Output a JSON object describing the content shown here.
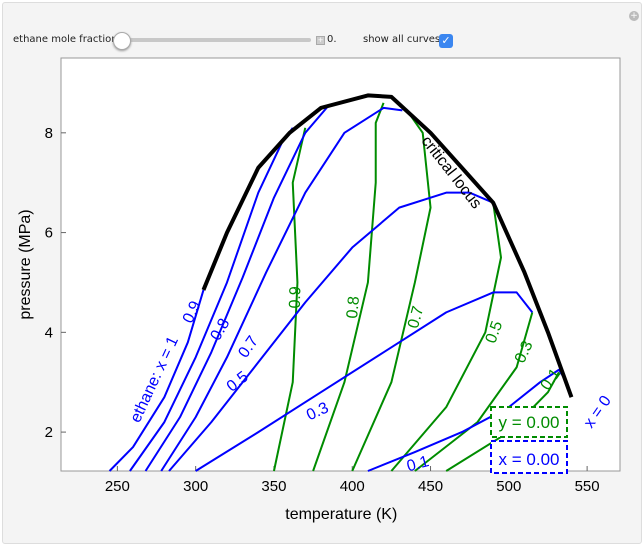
{
  "controls": {
    "slider_label": "ethane mole fraction",
    "slider_value": "0.",
    "slider_fraction": 0,
    "checkbox_label": "show all curves",
    "checkbox_checked": true
  },
  "chart_data": {
    "type": "line",
    "xlabel": "temperature (K)",
    "ylabel": "pressure (MPa)",
    "xlim": [
      214,
      571
    ],
    "ylim": [
      1.22,
      9.5
    ],
    "xticks": [
      250,
      300,
      350,
      400,
      450,
      500,
      550
    ],
    "yticks": [
      2,
      4,
      6,
      8
    ],
    "colors": {
      "critical": "#000000",
      "bubble": "#0000ff",
      "dew": "#008c00"
    },
    "critical_locus": {
      "label": "critical locus",
      "points": [
        [
          305,
          4.85
        ],
        [
          320,
          6.0
        ],
        [
          340,
          7.3
        ],
        [
          360,
          8.0
        ],
        [
          380,
          8.5
        ],
        [
          410,
          8.75
        ],
        [
          425,
          8.72
        ],
        [
          450,
          8.0
        ],
        [
          470,
          7.3
        ],
        [
          490,
          6.6
        ],
        [
          510,
          5.2
        ],
        [
          525,
          4.0
        ],
        [
          540,
          2.7
        ]
      ]
    },
    "bubble_curves": [
      {
        "label": "ethane: x = 1",
        "points": [
          [
            245,
            1.22
          ],
          [
            260,
            1.7
          ],
          [
            280,
            2.7
          ],
          [
            295,
            3.8
          ],
          [
            305,
            4.85
          ]
        ]
      },
      {
        "label": "0.9",
        "points": [
          [
            258,
            1.22
          ],
          [
            280,
            2.2
          ],
          [
            300,
            3.5
          ],
          [
            320,
            5.0
          ],
          [
            340,
            6.8
          ],
          [
            355,
            7.8
          ],
          [
            362,
            8.1
          ]
        ]
      },
      {
        "label": "0.8",
        "points": [
          [
            268,
            1.22
          ],
          [
            290,
            2.3
          ],
          [
            310,
            3.6
          ],
          [
            330,
            5.1
          ],
          [
            350,
            6.7
          ],
          [
            370,
            8.0
          ],
          [
            385,
            8.55
          ]
        ]
      },
      {
        "label": "0.7",
        "points": [
          [
            278,
            1.22
          ],
          [
            300,
            2.3
          ],
          [
            320,
            3.5
          ],
          [
            345,
            5.2
          ],
          [
            370,
            6.8
          ],
          [
            395,
            8.0
          ],
          [
            420,
            8.5
          ],
          [
            432,
            8.45
          ]
        ]
      },
      {
        "label": "0.5",
        "points": [
          [
            283,
            1.22
          ],
          [
            310,
            2.2
          ],
          [
            340,
            3.4
          ],
          [
            370,
            4.6
          ],
          [
            400,
            5.7
          ],
          [
            430,
            6.5
          ],
          [
            460,
            6.8
          ],
          [
            475,
            6.8
          ],
          [
            490,
            6.6
          ]
        ]
      },
      {
        "label": "0.3",
        "points": [
          [
            300,
            1.22
          ],
          [
            340,
            2.0
          ],
          [
            380,
            2.8
          ],
          [
            420,
            3.6
          ],
          [
            460,
            4.4
          ],
          [
            490,
            4.8
          ],
          [
            505,
            4.8
          ],
          [
            515,
            4.4
          ]
        ]
      },
      {
        "label": "0.1",
        "points": [
          [
            410,
            1.22
          ],
          [
            440,
            1.6
          ],
          [
            470,
            2.0
          ],
          [
            500,
            2.5
          ],
          [
            520,
            3.0
          ],
          [
            532,
            3.25
          ],
          [
            537,
            3.0
          ]
        ]
      }
    ],
    "dew_curves": [
      {
        "label": "0.9",
        "points": [
          [
            350,
            1.22
          ],
          [
            362,
            3
          ],
          [
            365,
            5
          ],
          [
            362,
            7
          ],
          [
            370,
            8.1
          ]
        ]
      },
      {
        "label": "0.8",
        "points": [
          [
            375,
            1.22
          ],
          [
            395,
            3
          ],
          [
            410,
            5
          ],
          [
            415,
            7
          ],
          [
            415,
            8.2
          ],
          [
            420,
            8.6
          ]
        ]
      },
      {
        "label": "0.7",
        "points": [
          [
            400,
            1.22
          ],
          [
            425,
            3
          ],
          [
            440,
            5
          ],
          [
            450,
            6.5
          ],
          [
            445,
            8
          ],
          [
            435,
            8.45
          ]
        ]
      },
      {
        "label": "0.5",
        "points": [
          [
            425,
            1.22
          ],
          [
            460,
            2.5
          ],
          [
            485,
            4
          ],
          [
            495,
            5.5
          ],
          [
            490,
            6.6
          ]
        ]
      },
      {
        "label": "0.3",
        "points": [
          [
            440,
            1.22
          ],
          [
            480,
            2.2
          ],
          [
            505,
            3.3
          ],
          [
            515,
            4.4
          ]
        ]
      },
      {
        "label": "0.1",
        "points": [
          [
            460,
            1.22
          ],
          [
            500,
            2.0
          ],
          [
            525,
            2.8
          ],
          [
            532,
            3.2
          ]
        ]
      }
    ],
    "x0_label": "x = 0",
    "readouts": {
      "y": "y = 0.00",
      "x": "x = 0.00"
    }
  }
}
